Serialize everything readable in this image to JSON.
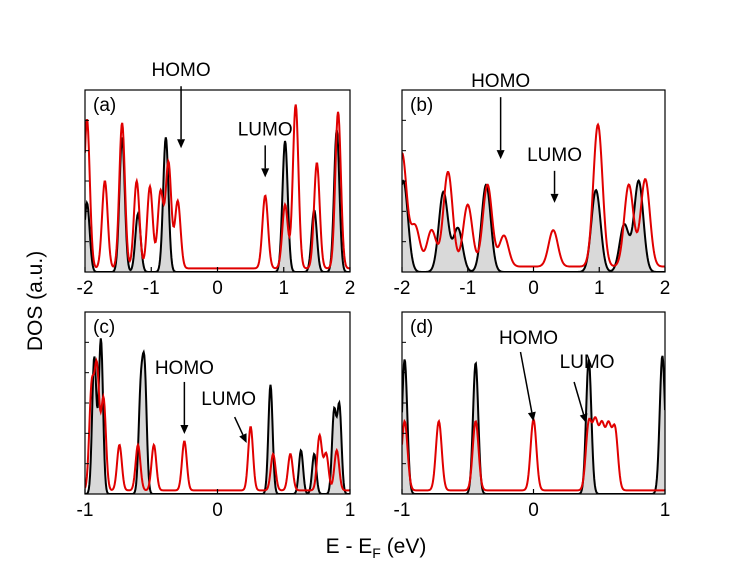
{
  "figure": {
    "ylabel": "DOS (a.u.)",
    "xlabel_main": "E - E",
    "xlabel_sub": "F",
    "xlabel_unit": " (eV)"
  },
  "colors": {
    "total_dos": "#000000",
    "total_fill": "#d9d9d9",
    "molecule_dos": "#e00000"
  },
  "chart_data": [
    {
      "type": "area",
      "panel": "(a)",
      "xlim": [
        -2,
        2
      ],
      "ylim": [
        0,
        1
      ],
      "xticks": [
        -2,
        -1,
        0,
        1,
        2
      ],
      "xtick_labels": [
        "-2",
        "-1",
        "0",
        "1",
        "2"
      ],
      "grid": false,
      "legend": "none",
      "annotations": [
        {
          "text": "HOMO",
          "x": -0.55,
          "y": 0.68
        },
        {
          "text": "LUMO",
          "x": 0.72,
          "y": 0.52
        }
      ],
      "series": [
        {
          "role": "total",
          "sigma": 0.04,
          "peaks": [
            [
              -1.97,
              0.38
            ],
            [
              -1.44,
              0.74
            ],
            [
              -1.2,
              0.32
            ],
            [
              -0.78,
              0.74
            ],
            [
              1.02,
              0.72
            ],
            [
              1.46,
              0.34
            ],
            [
              1.8,
              0.78
            ]
          ]
        },
        {
          "role": "molecule",
          "sigma": 0.042,
          "baseline": 0.02,
          "peaks": [
            [
              -1.97,
              0.82
            ],
            [
              -1.7,
              0.48
            ],
            [
              -1.44,
              0.8
            ],
            [
              -1.22,
              0.48
            ],
            [
              -1.02,
              0.45
            ],
            [
              -0.86,
              0.42
            ],
            [
              -0.74,
              0.58
            ],
            [
              -0.6,
              0.37
            ],
            [
              0.72,
              0.4
            ],
            [
              1.02,
              0.35
            ],
            [
              1.18,
              0.9
            ],
            [
              1.5,
              0.58
            ],
            [
              1.82,
              0.86
            ]
          ]
        }
      ]
    },
    {
      "type": "area",
      "panel": "(b)",
      "xlim": [
        -2,
        2
      ],
      "ylim": [
        0,
        1
      ],
      "xticks": [
        -2,
        -1,
        0,
        1,
        2
      ],
      "xtick_labels": [
        "-2",
        "-1",
        "0",
        "1",
        "2"
      ],
      "grid": false,
      "legend": "none",
      "annotations": [
        {
          "text": "HOMO",
          "x": -0.5,
          "y": 0.62
        },
        {
          "text": "LUMO",
          "x": 0.32,
          "y": 0.38
        }
      ],
      "series": [
        {
          "role": "total",
          "sigma": 0.07,
          "peaks": [
            [
              -1.98,
              0.5
            ],
            [
              -1.37,
              0.44
            ],
            [
              -1.15,
              0.24
            ],
            [
              -0.72,
              0.48
            ],
            [
              0.95,
              0.45
            ],
            [
              1.38,
              0.26
            ],
            [
              1.6,
              0.5
            ]
          ]
        },
        {
          "role": "molecule",
          "sigma": 0.07,
          "baseline": 0.03,
          "peaks": [
            [
              -2.0,
              0.62
            ],
            [
              -1.8,
              0.22
            ],
            [
              -1.55,
              0.2
            ],
            [
              -1.3,
              0.52
            ],
            [
              -1.0,
              0.34
            ],
            [
              -0.7,
              0.45
            ],
            [
              -0.45,
              0.17
            ],
            [
              0.3,
              0.2
            ],
            [
              0.98,
              0.78
            ],
            [
              1.45,
              0.45
            ],
            [
              1.7,
              0.48
            ]
          ]
        }
      ]
    },
    {
      "type": "area",
      "panel": "(c)",
      "xlim": [
        -1,
        1
      ],
      "ylim": [
        0,
        1
      ],
      "xticks": [
        -1,
        0,
        1
      ],
      "xtick_labels": [
        "-1",
        "0",
        "1"
      ],
      "grid": false,
      "legend": "none",
      "annotations": [
        {
          "text": "HOMO",
          "x": -0.25,
          "y": 0.33
        },
        {
          "text": "LUMO",
          "x": 0.22,
          "y": 0.28
        }
      ],
      "series": [
        {
          "role": "total",
          "sigma": 0.016,
          "peaks": [
            [
              -0.93,
              0.75
            ],
            [
              -0.88,
              0.85
            ],
            [
              -0.58,
              0.53
            ],
            [
              -0.55,
              0.65
            ],
            [
              0.4,
              0.6
            ],
            [
              0.63,
              0.24
            ],
            [
              0.73,
              0.22
            ],
            [
              0.88,
              0.45
            ],
            [
              0.92,
              0.48
            ]
          ]
        },
        {
          "role": "molecule",
          "sigma": 0.018,
          "baseline": 0.02,
          "peaks": [
            [
              -0.95,
              0.55
            ],
            [
              -0.91,
              0.65
            ],
            [
              -0.86,
              0.5
            ],
            [
              -0.74,
              0.25
            ],
            [
              -0.6,
              0.25
            ],
            [
              -0.48,
              0.25
            ],
            [
              -0.25,
              0.27
            ],
            [
              0.25,
              0.35
            ],
            [
              0.42,
              0.2
            ],
            [
              0.55,
              0.2
            ],
            [
              0.77,
              0.3
            ],
            [
              0.82,
              0.2
            ],
            [
              0.9,
              0.22
            ]
          ]
        }
      ]
    },
    {
      "type": "area",
      "panel": "(d)",
      "xlim": [
        -1,
        1
      ],
      "ylim": [
        0,
        1
      ],
      "xticks": [
        -1,
        0,
        1
      ],
      "xtick_labels": [
        "-1",
        "0",
        "1"
      ],
      "grid": false,
      "legend": "none",
      "annotations": [
        {
          "text": "HOMO",
          "x": 0.0,
          "y": 0.4
        },
        {
          "text": "LUMO",
          "x": 0.4,
          "y": 0.39
        }
      ],
      "series": [
        {
          "role": "total",
          "sigma": 0.02,
          "peaks": [
            [
              -0.98,
              0.74
            ],
            [
              -0.44,
              0.72
            ],
            [
              0.42,
              0.74
            ],
            [
              0.98,
              0.76
            ]
          ]
        },
        {
          "role": "molecule",
          "sigma": 0.022,
          "baseline": 0.02,
          "peaks": [
            [
              -0.98,
              0.38
            ],
            [
              -0.72,
              0.38
            ],
            [
              -0.44,
              0.38
            ],
            [
              0.0,
              0.39
            ],
            [
              0.42,
              0.36
            ],
            [
              0.47,
              0.35
            ],
            [
              0.52,
              0.33
            ],
            [
              0.57,
              0.33
            ],
            [
              0.62,
              0.33
            ]
          ]
        }
      ]
    }
  ]
}
